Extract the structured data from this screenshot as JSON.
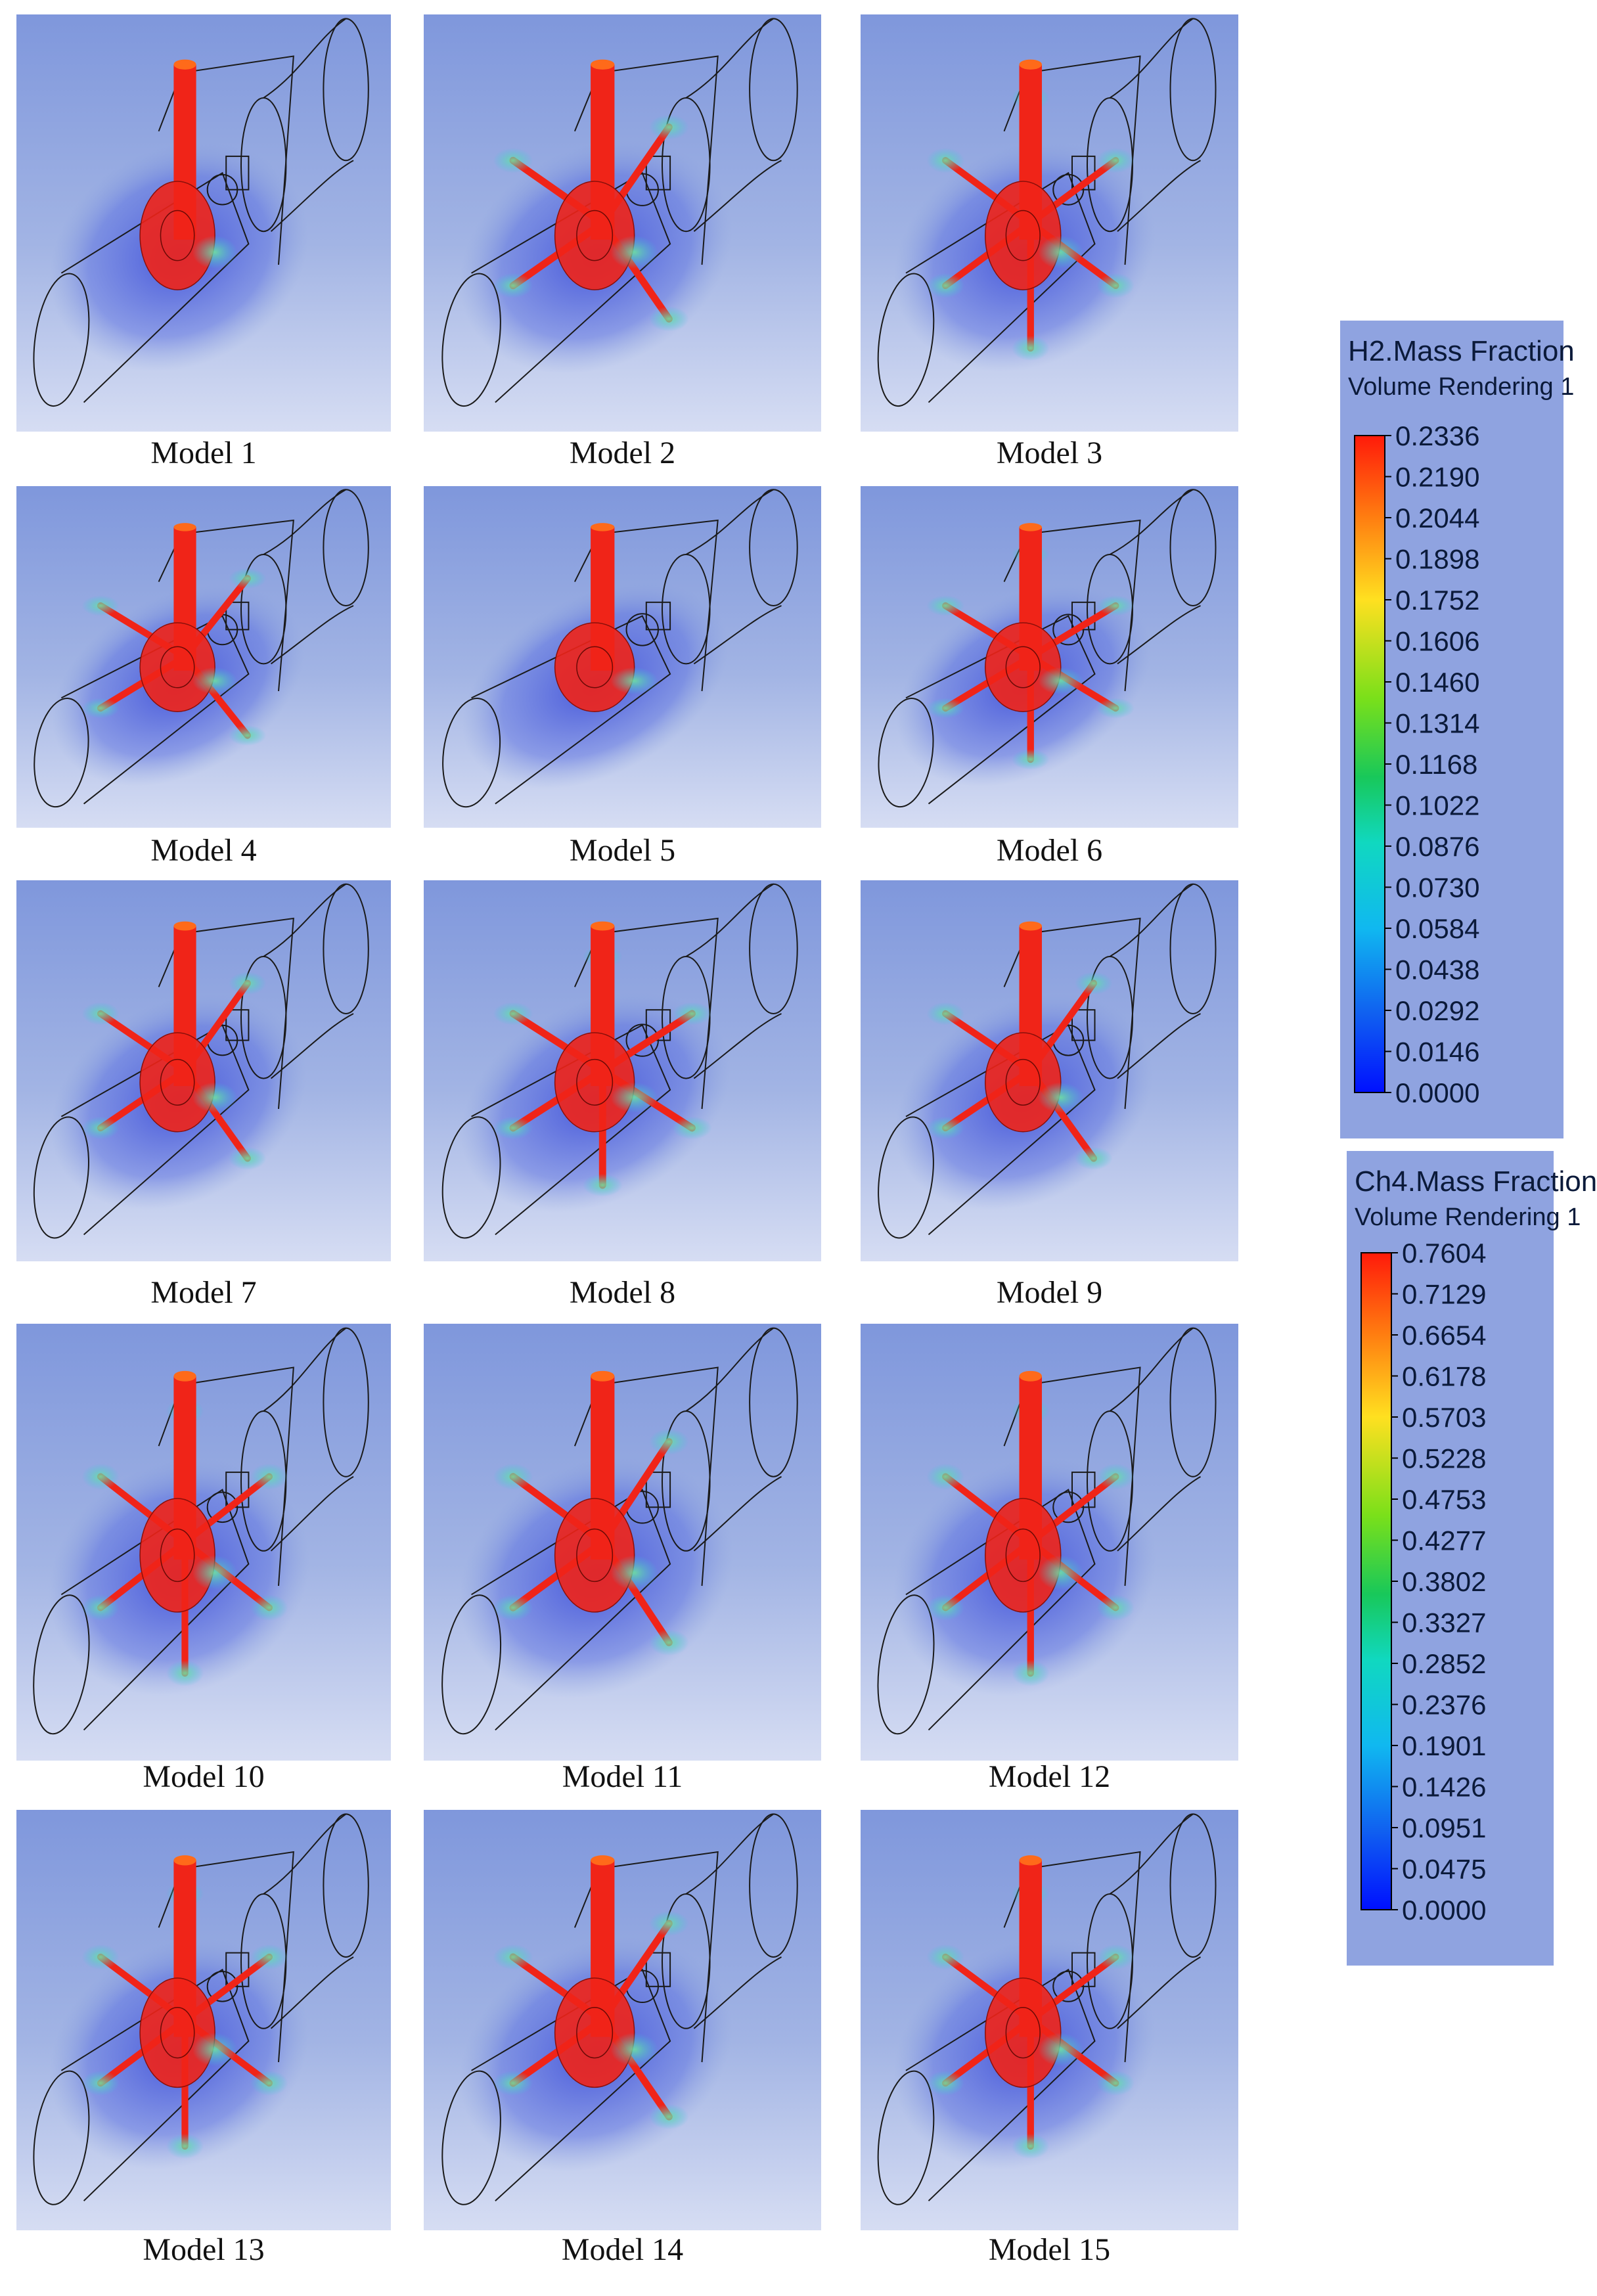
{
  "figure": {
    "models": [
      {
        "label": "Model 1",
        "pattern": 0
      },
      {
        "label": "Model 2",
        "pattern": 1
      },
      {
        "label": "Model 3",
        "pattern": 2
      },
      {
        "label": "Model 4",
        "pattern": 1
      },
      {
        "label": "Model 5",
        "pattern": 0
      },
      {
        "label": "Model 6",
        "pattern": 2
      },
      {
        "label": "Model 7",
        "pattern": 1
      },
      {
        "label": "Model 8",
        "pattern": 2
      },
      {
        "label": "Model 9",
        "pattern": 1
      },
      {
        "label": "Model 10",
        "pattern": 2
      },
      {
        "label": "Model 11",
        "pattern": 1
      },
      {
        "label": "Model 12",
        "pattern": 2
      },
      {
        "label": "Model 13",
        "pattern": 2
      },
      {
        "label": "Model 14",
        "pattern": 1
      },
      {
        "label": "Model 15",
        "pattern": 2
      }
    ],
    "legends": [
      {
        "title": "H2.Mass Fraction",
        "subtitle": "Volume Rendering 1",
        "values": [
          "0.2336",
          "0.2190",
          "0.2044",
          "0.1898",
          "0.1752",
          "0.1606",
          "0.1460",
          "0.1314",
          "0.1168",
          "0.1022",
          "0.0876",
          "0.0730",
          "0.0584",
          "0.0438",
          "0.0292",
          "0.0146",
          "0.0000"
        ]
      },
      {
        "title": "Ch4.Mass Fraction",
        "subtitle": "Volume Rendering 1",
        "values": [
          "0.7604",
          "0.7129",
          "0.6654",
          "0.6178",
          "0.5703",
          "0.5228",
          "0.4753",
          "0.4277",
          "0.3802",
          "0.3327",
          "0.2852",
          "0.2376",
          "0.1901",
          "0.1426",
          "0.0951",
          "0.0475",
          "0.0000"
        ]
      }
    ],
    "colors": {
      "flame_red": "#f02418",
      "flame_orange": "#ff6a1a",
      "plume_blue": "#3848d8",
      "background": "#8fa3e0"
    }
  }
}
